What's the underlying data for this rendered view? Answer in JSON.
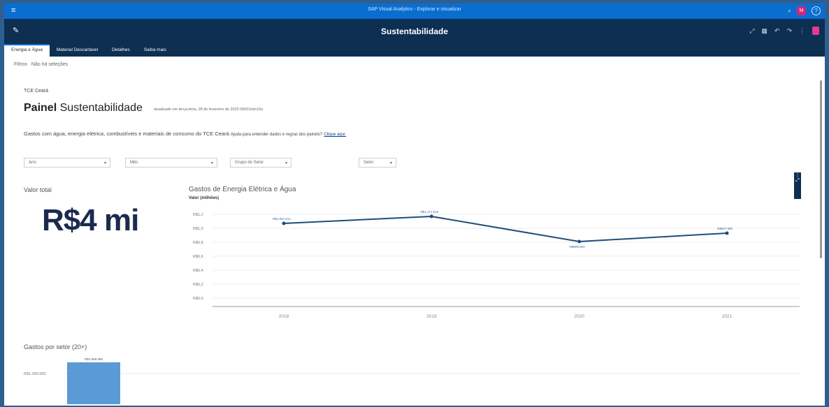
{
  "app": {
    "title": "SAP Visual Analytics - Explorar e visualizar",
    "user_initials": "M",
    "help_icon": "help-icon"
  },
  "header": {
    "story_title": "Sustentabilidade"
  },
  "tabs": [
    {
      "label": "Energia e Água",
      "active": true
    },
    {
      "label": "Material Descartável",
      "active": false
    },
    {
      "label": "Detalhes",
      "active": false
    },
    {
      "label": "Saiba mais",
      "active": false
    }
  ],
  "filters": {
    "label": "Filtros",
    "value": "Não há seleções"
  },
  "page": {
    "org": "TCE Ceará",
    "title_bold": "Painel",
    "title_rest": "Sustentabilidade",
    "updated": "atualizado em terça-feira, 28 de fevereiro de 2023 09h01min15s",
    "description": "Gastos com água, energia elétrica, combustíveis e materiais de consumo do TCE Ceará",
    "help_text": "Ajuda para entender dados e regras dos painéis?",
    "help_link": "Clique aqui."
  },
  "selects": [
    {
      "label": "Ano"
    },
    {
      "label": "Mês"
    },
    {
      "label": "Grupo do Setor"
    },
    {
      "label": "Setor"
    }
  ],
  "kpi": {
    "label": "Valor total",
    "value": "R$4 mi"
  },
  "energy_chart": {
    "chart_data": {
      "type": "line",
      "title": "Gastos de Energia Elétrica e Água",
      "ylabel": "Valor (milhões)",
      "categories": [
        "2018",
        "2019",
        "2020",
        "2021"
      ],
      "values": [
        1.07,
        1.17,
        0.81,
        0.93
      ],
      "data_labels": [
        "R$1.067.614",
        "R$1.171.616",
        "R$809.553",
        "R$927.980"
      ],
      "yticks": [
        "R$0,0",
        "R$0,2",
        "R$0,4",
        "R$0,6",
        "R$0,8",
        "R$1,0",
        "R$1,2"
      ],
      "ylim": [
        0,
        1.2
      ],
      "color": "#1f4e79"
    }
  },
  "sector_chart": {
    "chart_data": {
      "type": "bar",
      "title": "Gastos por setor (20+)",
      "values": [
        1058366
      ],
      "data_labels": [
        "R$1.058.366"
      ],
      "yticks": [
        "R$1.000.000"
      ],
      "color": "#5b9bd5"
    }
  }
}
